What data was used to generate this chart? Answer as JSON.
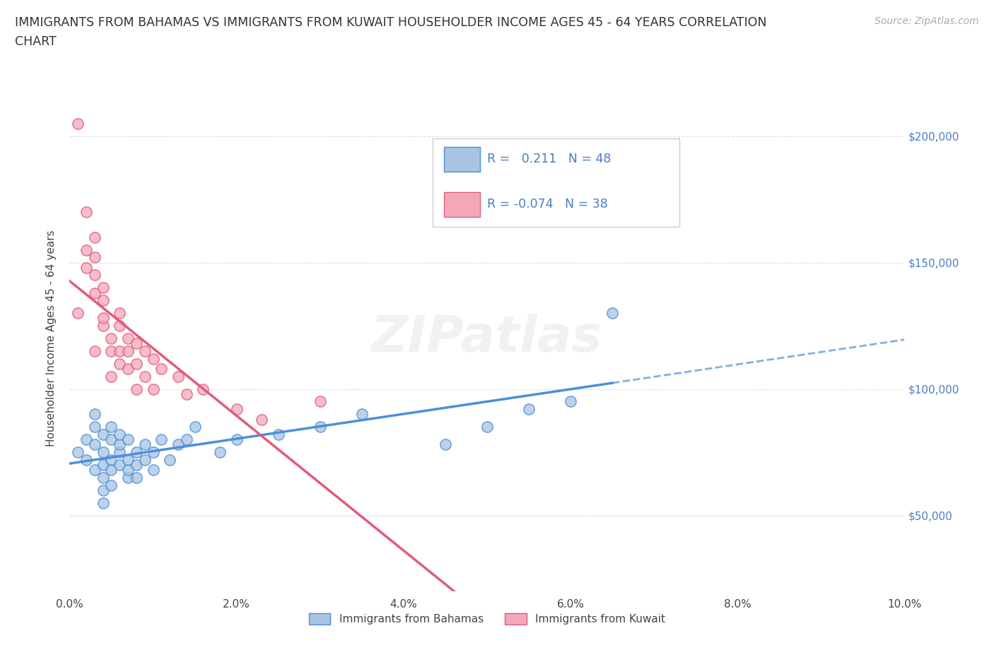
{
  "title": "IMMIGRANTS FROM BAHAMAS VS IMMIGRANTS FROM KUWAIT HOUSEHOLDER INCOME AGES 45 - 64 YEARS CORRELATION\nCHART",
  "source": "Source: ZipAtlas.com",
  "ylabel": "Householder Income Ages 45 - 64 years",
  "xlim": [
    0.0,
    0.1
  ],
  "ylim": [
    20000,
    220000
  ],
  "yticks": [
    50000,
    100000,
    150000,
    200000
  ],
  "ytick_labels": [
    "$50,000",
    "$100,000",
    "$150,000",
    "$200,000"
  ],
  "xticks": [
    0.0,
    0.02,
    0.04,
    0.06,
    0.08,
    0.1
  ],
  "xtick_labels": [
    "0.0%",
    "2.0%",
    "4.0%",
    "6.0%",
    "8.0%",
    "10.0%"
  ],
  "bahamas_color": "#a8c4e0",
  "kuwait_color": "#f4a7b9",
  "bahamas_line_color": "#4a90d9",
  "kuwait_line_color": "#e05c7a",
  "r_bahamas": 0.211,
  "n_bahamas": 48,
  "r_kuwait": -0.074,
  "n_kuwait": 38,
  "legend_r_color": "#4a7cc7",
  "watermark": "ZIPatlas",
  "background_color": "#ffffff",
  "grid_color": "#d8d8d8",
  "bahamas_x": [
    0.001,
    0.002,
    0.002,
    0.003,
    0.003,
    0.003,
    0.003,
    0.004,
    0.004,
    0.004,
    0.004,
    0.004,
    0.004,
    0.005,
    0.005,
    0.005,
    0.005,
    0.005,
    0.006,
    0.006,
    0.006,
    0.006,
    0.007,
    0.007,
    0.007,
    0.007,
    0.008,
    0.008,
    0.008,
    0.009,
    0.009,
    0.01,
    0.01,
    0.011,
    0.012,
    0.013,
    0.014,
    0.015,
    0.018,
    0.02,
    0.025,
    0.03,
    0.035,
    0.045,
    0.05,
    0.055,
    0.06,
    0.065
  ],
  "bahamas_y": [
    75000,
    80000,
    72000,
    85000,
    68000,
    90000,
    78000,
    82000,
    75000,
    70000,
    65000,
    60000,
    55000,
    80000,
    72000,
    68000,
    85000,
    62000,
    75000,
    78000,
    70000,
    82000,
    65000,
    72000,
    80000,
    68000,
    75000,
    70000,
    65000,
    78000,
    72000,
    75000,
    68000,
    80000,
    72000,
    78000,
    80000,
    85000,
    75000,
    80000,
    82000,
    85000,
    90000,
    78000,
    85000,
    92000,
    95000,
    130000
  ],
  "kuwait_x": [
    0.001,
    0.001,
    0.002,
    0.002,
    0.002,
    0.003,
    0.003,
    0.003,
    0.003,
    0.003,
    0.004,
    0.004,
    0.004,
    0.004,
    0.005,
    0.005,
    0.005,
    0.006,
    0.006,
    0.006,
    0.006,
    0.007,
    0.007,
    0.007,
    0.008,
    0.008,
    0.008,
    0.009,
    0.009,
    0.01,
    0.01,
    0.011,
    0.013,
    0.014,
    0.016,
    0.02,
    0.023,
    0.03
  ],
  "kuwait_y": [
    205000,
    130000,
    155000,
    148000,
    170000,
    160000,
    145000,
    138000,
    152000,
    115000,
    140000,
    125000,
    135000,
    128000,
    115000,
    120000,
    105000,
    130000,
    115000,
    110000,
    125000,
    120000,
    115000,
    108000,
    118000,
    100000,
    110000,
    115000,
    105000,
    100000,
    112000,
    108000,
    105000,
    98000,
    100000,
    92000,
    88000,
    95000
  ]
}
